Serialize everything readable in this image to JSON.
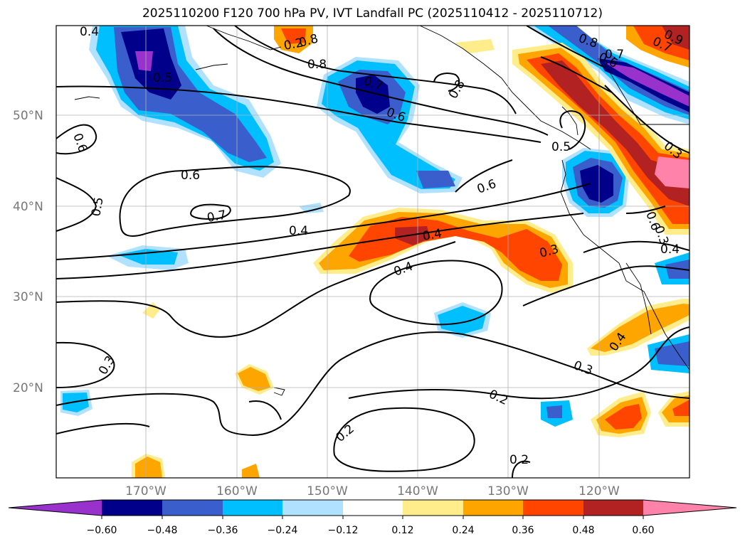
{
  "title": "2025110200 F120 700 hPa PV, IVT Landfall PC (2025110412 - 2025110712)",
  "lat_labels": [
    "50°N",
    "40°N",
    "30°N",
    "20°N"
  ],
  "lon_labels": [
    "170°W",
    "160°W",
    "150°W",
    "140°W",
    "130°W",
    "120°W"
  ],
  "colorbar": {
    "ticks": [
      "−0.60",
      "−0.48",
      "−0.36",
      "−0.24",
      "−0.12",
      "0.12",
      "0.24",
      "0.36",
      "0.48",
      "0.60"
    ],
    "colors": [
      "#9932cc",
      "#00008b",
      "#3a5fcd",
      "#00bfff",
      "#b0e2ff",
      "#ffffff",
      "#ffec8b",
      "#ffa500",
      "#ff4500",
      "#b22222",
      "#ff82ab"
    ]
  },
  "contour_labels": [
    "0.8",
    "0.7",
    "0.6",
    "0.5",
    "0.4",
    "0.3",
    "0.2",
    "0.8",
    "0.7",
    "0.6",
    "0.6",
    "0.5",
    "0.7",
    "0.4",
    "0.4",
    "0.3",
    "0.3",
    "0.2",
    "0.2",
    "0.2",
    "0.3",
    "0.4",
    "0.6",
    "0.8",
    "0.7",
    "0.3",
    "0.9",
    "0.4",
    "0.4",
    "0.5",
    "0.6",
    "0.6",
    "0.8"
  ]
}
